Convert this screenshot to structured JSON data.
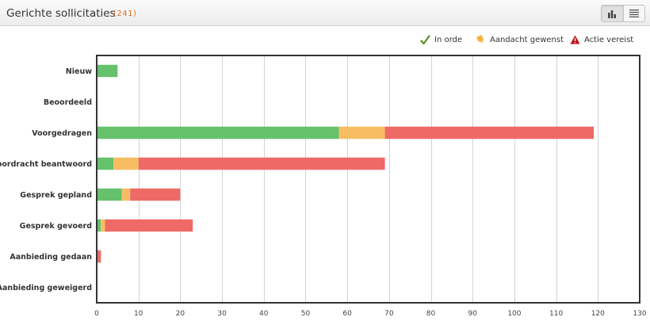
{
  "header": {
    "title": "Gerichte sollicitaties",
    "count": "(241)"
  },
  "view_toggle": {
    "chart_icon": "bar-chart-icon",
    "list_icon": "list-icon"
  },
  "legend": [
    {
      "label": "In orde",
      "icon": "checkmark-icon",
      "color": "#5aa02c"
    },
    {
      "label": "Aandacht gewenst",
      "icon": "pin-icon",
      "color": "#f5b43a"
    },
    {
      "label": "Actie vereist",
      "icon": "warning-icon",
      "color": "#c0141a"
    }
  ],
  "chart_data": {
    "type": "bar",
    "orientation": "horizontal",
    "stacked": true,
    "categories": [
      "Nieuw",
      "Beoordeeld",
      "Voorgedragen",
      "Voordracht beantwoord",
      "Gesprek gepland",
      "Gesprek gevoerd",
      "Aanbieding gedaan",
      "Aanbieding geweigerd"
    ],
    "series": [
      {
        "name": "In orde",
        "color": "#66c16c",
        "values": [
          5,
          0,
          58,
          4,
          6,
          1,
          0,
          0
        ]
      },
      {
        "name": "Aandacht gewenst",
        "color": "#f8bd62",
        "values": [
          0,
          0,
          11,
          6,
          2,
          1,
          0,
          0
        ]
      },
      {
        "name": "Actie vereist",
        "color": "#ee6a66",
        "values": [
          0,
          0,
          50,
          59,
          12,
          21,
          1,
          0
        ]
      }
    ],
    "xlim": [
      0,
      130
    ],
    "xticks": [
      0,
      10,
      20,
      30,
      40,
      50,
      60,
      70,
      80,
      90,
      100,
      110,
      120,
      130
    ],
    "grid": true,
    "legend_position": "top-right"
  }
}
